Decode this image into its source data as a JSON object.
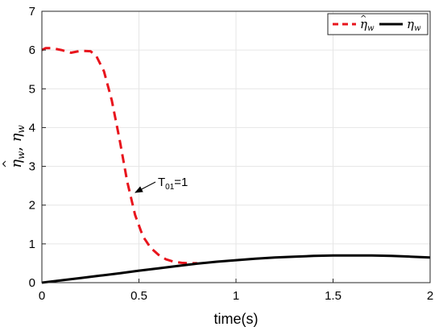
{
  "chart_data": {
    "type": "line",
    "xlabel": "time(s)",
    "ylabel": "η̂w, ηw",
    "xlim": [
      0,
      2
    ],
    "ylim": [
      0,
      7
    ],
    "x_ticks": [
      "0",
      "0.5",
      "1",
      "1.5",
      "2"
    ],
    "y_ticks": [
      "0",
      "1",
      "2",
      "3",
      "4",
      "5",
      "6",
      "7"
    ],
    "grid": true,
    "legend_position": "top-right",
    "series": [
      {
        "name": "η̂w",
        "style": "dashed",
        "color": "#e8141c",
        "x": [
          0,
          0.02,
          0.05,
          0.1,
          0.15,
          0.2,
          0.25,
          0.28,
          0.32,
          0.36,
          0.4,
          0.44,
          0.48,
          0.52,
          0.56,
          0.6,
          0.64,
          0.68,
          0.72,
          0.76,
          0.8
        ],
        "y": [
          6.0,
          6.05,
          6.05,
          6.0,
          5.93,
          5.98,
          5.97,
          5.85,
          5.45,
          4.7,
          3.7,
          2.6,
          1.75,
          1.2,
          0.9,
          0.72,
          0.6,
          0.54,
          0.51,
          0.5,
          0.5
        ]
      },
      {
        "name": "ηw",
        "style": "solid",
        "color": "#000000",
        "x": [
          0,
          0.1,
          0.2,
          0.3,
          0.4,
          0.5,
          0.6,
          0.7,
          0.8,
          0.9,
          1.0,
          1.1,
          1.2,
          1.3,
          1.4,
          1.5,
          1.6,
          1.7,
          1.8,
          1.9,
          2.0
        ],
        "y": [
          0.0,
          0.06,
          0.12,
          0.18,
          0.24,
          0.31,
          0.37,
          0.43,
          0.49,
          0.54,
          0.58,
          0.62,
          0.65,
          0.67,
          0.69,
          0.7,
          0.7,
          0.7,
          0.69,
          0.67,
          0.65
        ]
      }
    ],
    "annotations": [
      {
        "text": "T01=1",
        "arrow_to": [
          0.5,
          2.6
        ]
      }
    ]
  },
  "legend": {
    "items": [
      {
        "base": "η",
        "sub": "w",
        "hat": true
      },
      {
        "base": "η",
        "sub": "w",
        "hat": false
      }
    ]
  },
  "annotation": {
    "t": "T",
    "sub": "01",
    "rest": "=1"
  },
  "ylabel_parts": {
    "base1": "η",
    "sub1": "w",
    "sep": ", ",
    "base2": "η",
    "sub2": "w"
  }
}
